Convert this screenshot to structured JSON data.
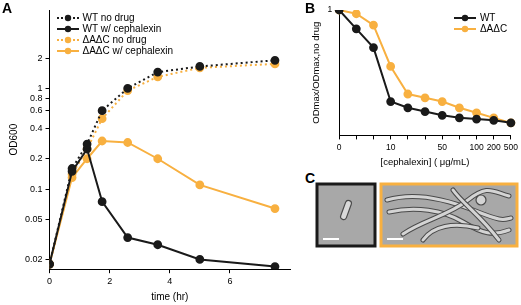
{
  "chart_data": [
    {
      "type": "line",
      "title": "A",
      "x_label": "time (hr)",
      "y_label": "OD600",
      "x": [
        0,
        0.75,
        1.25,
        1.75,
        2.6,
        3.6,
        5,
        7.5
      ],
      "xlim": [
        0,
        8
      ],
      "xticks": [
        0,
        2,
        4,
        6
      ],
      "ylim": [
        0.016,
        6
      ],
      "yticks": [
        0.02,
        0.05,
        0.1,
        0.2,
        0.4,
        0.6,
        0.8,
        1,
        2
      ],
      "log": "y",
      "grid": false,
      "legend": "upper left",
      "series": [
        {
          "name": "WT no drug",
          "color": "#1a1a1a",
          "line_style": "dotted",
          "marker": "circle",
          "values": [
            0.018,
            0.16,
            0.28,
            0.6,
            1.0,
            1.45,
            1.65,
            1.9
          ]
        },
        {
          "name": "WT w/ cephalexin",
          "color": "#1a1a1a",
          "line_style": "solid",
          "marker": "circle",
          "values": [
            0.018,
            0.15,
            0.25,
            0.075,
            0.033,
            0.028,
            0.02,
            0.017
          ]
        },
        {
          "name": "ΔAΔC no drug",
          "color": "#f8b040",
          "line_style": "dotted",
          "marker": "circle",
          "values": [
            0.018,
            0.14,
            0.25,
            0.5,
            0.95,
            1.3,
            1.6,
            1.75
          ]
        },
        {
          "name": "ΔAΔC w/ cephalexin",
          "color": "#f8b040",
          "line_style": "solid",
          "marker": "circle",
          "values": [
            0.018,
            0.13,
            0.2,
            0.3,
            0.29,
            0.2,
            0.11,
            0.064
          ]
        }
      ]
    },
    {
      "type": "line",
      "title": "B",
      "x_label": "[cephalexin] ( μg/mL)",
      "y_label": "ODmax/ODmax,no drug",
      "categories": [
        "0",
        null,
        null,
        "10",
        null,
        null,
        "50",
        null,
        "100",
        "200",
        "500"
      ],
      "ylim": [
        0,
        1
      ],
      "yticks": [
        1
      ],
      "grid": false,
      "legend": "upper right",
      "series": [
        {
          "name": "WT",
          "color": "#1a1a1a",
          "line_style": "solid",
          "marker": "circle",
          "values": [
            1,
            0.85,
            0.7,
            0.27,
            0.22,
            0.19,
            0.16,
            0.14,
            0.13,
            0.12,
            0.1
          ]
        },
        {
          "name": "ΔAΔC",
          "color": "#f8b040",
          "line_style": "solid",
          "marker": "circle",
          "values": [
            1,
            0.97,
            0.88,
            0.55,
            0.33,
            0.3,
            0.27,
            0.22,
            0.18,
            0.14,
            0.1
          ]
        }
      ]
    }
  ],
  "panel_c": {
    "label": "C",
    "frames": [
      {
        "color": "#1a1a1a"
      },
      {
        "color": "#f8b040"
      }
    ]
  }
}
